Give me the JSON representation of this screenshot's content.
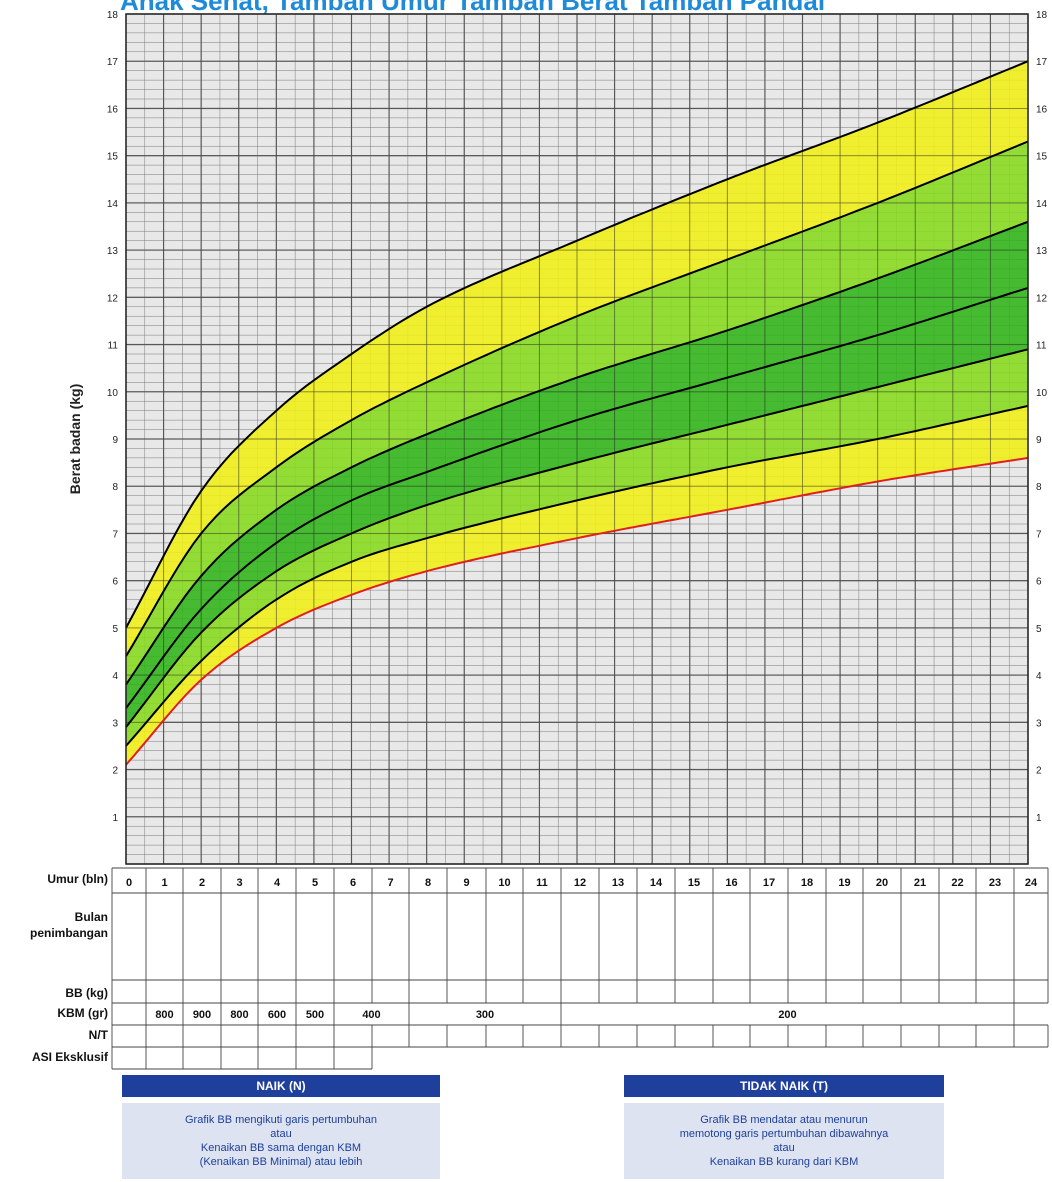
{
  "header": {
    "title": "Anak Sehat, Tambah Umur Tambah Berat Tambah Pandai"
  },
  "chart_data": {
    "type": "line",
    "ylabel": "Berat badan (kg)",
    "xlabel": "Umur (bln)",
    "xlim": [
      0,
      24
    ],
    "ylim": [
      0,
      18
    ],
    "y_ticks": [
      1,
      2,
      3,
      4,
      5,
      6,
      7,
      8,
      9,
      10,
      11,
      12,
      13,
      14,
      15,
      16,
      17,
      18
    ],
    "x_ticks": [
      0,
      1,
      2,
      3,
      4,
      5,
      6,
      7,
      8,
      9,
      10,
      11,
      12,
      13,
      14,
      15,
      16,
      17,
      18,
      19,
      20,
      21,
      22,
      23,
      24
    ],
    "grid": true,
    "x": [
      0,
      2,
      4,
      6,
      8,
      12,
      16,
      20,
      24
    ],
    "series": [
      {
        "values": [
          2.1,
          3.9,
          5.0,
          5.7,
          6.2,
          6.9,
          7.5,
          8.1,
          8.6
        ],
        "color": "#e02020"
      },
      {
        "values": [
          2.5,
          4.3,
          5.6,
          6.4,
          6.9,
          7.7,
          8.4,
          9.0,
          9.7
        ],
        "color": "#000000"
      },
      {
        "values": [
          2.9,
          4.9,
          6.2,
          7.0,
          7.6,
          8.5,
          9.3,
          10.1,
          10.9
        ],
        "color": "#000000"
      },
      {
        "values": [
          3.3,
          5.4,
          6.8,
          7.7,
          8.3,
          9.4,
          10.3,
          11.2,
          12.2
        ],
        "color": "#000000"
      },
      {
        "values": [
          3.8,
          6.1,
          7.5,
          8.4,
          9.1,
          10.3,
          11.3,
          12.4,
          13.6
        ],
        "color": "#000000"
      },
      {
        "values": [
          4.4,
          7.0,
          8.4,
          9.4,
          10.2,
          11.6,
          12.8,
          14.0,
          15.3
        ],
        "color": "#000000"
      },
      {
        "values": [
          5.0,
          7.9,
          9.6,
          10.8,
          11.8,
          13.2,
          14.5,
          15.7,
          17.0
        ],
        "color": "#000000"
      }
    ],
    "band_colors": [
      "#f0ef14",
      "#86d91c",
      "#2fb317",
      "#2fb317",
      "#86d91c",
      "#f0ef14"
    ],
    "colors": {
      "grid_bg": "#e8e8e8",
      "grid_line": "#333333",
      "header_blue": "#1f8ad8"
    }
  },
  "table": {
    "row_labels": {
      "umur": "Umur (bln)",
      "bulan1": "Bulan",
      "bulan2": "penimbangan",
      "bb": "BB (kg)",
      "kbm": "KBM (gr)",
      "nt": "N/T",
      "asi": "ASI Eksklusif"
    },
    "kbm_values": [
      {
        "label": "800",
        "from": 1,
        "to": 2
      },
      {
        "label": "900",
        "from": 2,
        "to": 3
      },
      {
        "label": "800",
        "from": 3,
        "to": 4
      },
      {
        "label": "600",
        "from": 4,
        "to": 5
      },
      {
        "label": "500",
        "from": 5,
        "to": 6
      },
      {
        "label": "400",
        "from": 6,
        "to": 8
      },
      {
        "label": "300",
        "from": 8,
        "to": 12
      },
      {
        "label": "200",
        "from": 12,
        "to": 24
      }
    ]
  },
  "legend": {
    "naik": {
      "title": "NAIK (N)",
      "lines": [
        "Grafik BB mengikuti garis pertumbuhan",
        "atau",
        "Kenaikan BB sama dengan KBM",
        "(Kenaikan BB Minimal) atau lebih"
      ]
    },
    "tidak_naik": {
      "title": "TIDAK NAIK (T)",
      "lines": [
        "Grafik BB mendatar atau menurun",
        "memotong garis pertumbuhan dibawahnya",
        "atau",
        "Kenaikan BB kurang dari KBM"
      ]
    }
  }
}
